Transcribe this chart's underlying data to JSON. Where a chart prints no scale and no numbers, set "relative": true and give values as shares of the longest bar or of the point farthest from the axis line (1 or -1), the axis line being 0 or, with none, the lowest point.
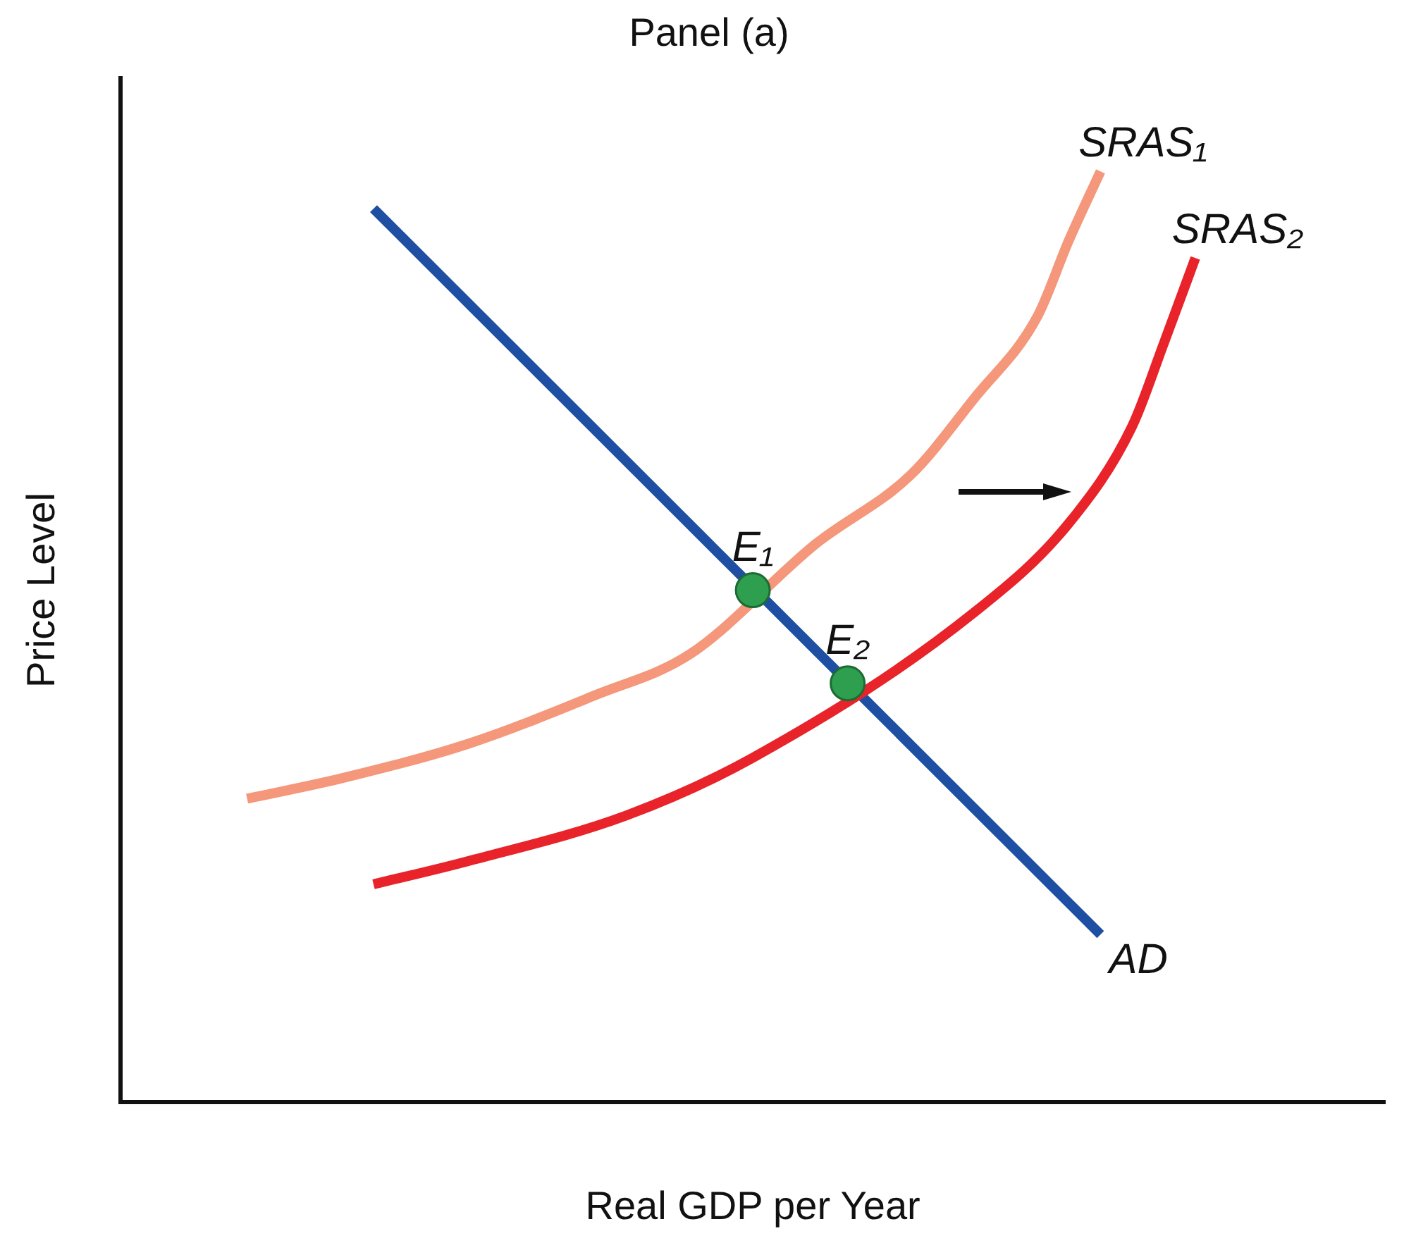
{
  "chart_data": {
    "type": "line",
    "title": "Panel (a)",
    "xlabel": "Real GDP per Year",
    "ylabel": "Price Level",
    "relative": true,
    "legend": false,
    "grid": false,
    "marker": "none",
    "line_style": "solid",
    "categories": [
      null,
      null,
      null,
      null,
      null,
      null,
      null,
      null,
      null,
      null,
      null,
      null,
      null,
      null,
      null,
      null,
      null,
      null,
      null,
      null,
      null,
      null,
      null,
      null,
      null,
      null,
      null,
      null,
      null,
      null,
      null,
      null,
      null,
      null,
      null,
      null,
      null,
      null,
      null,
      null,
      null
    ],
    "series": [
      {
        "name": "SRAS₁",
        "color": "#f4977a",
        "values": [
          null,
          null,
          null,
          null,
          0.326,
          null,
          null,
          0.348,
          null,
          null,
          null,
          0.385,
          null,
          null,
          null,
          0.437,
          null,
          null,
          0.481,
          null,
          null,
          null,
          0.6,
          null,
          null,
          0.674,
          null,
          0.756,
          null,
          0.844,
          0.926,
          1.0,
          null,
          null,
          null,
          null,
          null,
          null,
          null,
          null,
          null
        ]
      },
      {
        "name": "SRAS₂",
        "color": "#e8232a",
        "values": [
          null,
          null,
          null,
          null,
          null,
          null,
          null,
          null,
          0.234,
          null,
          null,
          0.259,
          null,
          null,
          null,
          null,
          0.308,
          null,
          null,
          null,
          0.37,
          null,
          null,
          null,
          null,
          null,
          null,
          0.526,
          null,
          null,
          0.622,
          null,
          0.726,
          0.815,
          0.907,
          null,
          null,
          null,
          null,
          null,
          null
        ]
      },
      {
        "name": "AD",
        "color": "#1f4fa3",
        "values": [
          null,
          null,
          null,
          null,
          null,
          null,
          null,
          null,
          0.96,
          null,
          null,
          null,
          null,
          null,
          null,
          null,
          null,
          null,
          null,
          null,
          null,
          null,
          null,
          null,
          null,
          null,
          null,
          null,
          null,
          null,
          null,
          0.18,
          null,
          null,
          null,
          null,
          null,
          null,
          null,
          null,
          null
        ]
      },
      {
        "name": "E₁",
        "marker": "circle",
        "color": "#2e9e4f",
        "values": [
          null,
          null,
          null,
          null,
          null,
          null,
          null,
          null,
          null,
          null,
          null,
          null,
          null,
          null,
          null,
          null,
          null,
          null,
          null,
          null,
          0.55,
          null,
          null,
          null,
          null,
          null,
          null,
          null,
          null,
          null,
          null,
          null,
          null,
          null,
          null,
          null,
          null,
          null,
          null,
          null,
          null
        ]
      },
      {
        "name": "E₂",
        "marker": "circle",
        "color": "#2e9e4f",
        "values": [
          null,
          null,
          null,
          null,
          null,
          null,
          null,
          null,
          null,
          null,
          null,
          null,
          null,
          null,
          null,
          null,
          null,
          null,
          null,
          null,
          null,
          null,
          null,
          0.45,
          null,
          null,
          null,
          null,
          null,
          null,
          null,
          null,
          null,
          null,
          null,
          null,
          null,
          null,
          null,
          null,
          null
        ]
      }
    ]
  }
}
